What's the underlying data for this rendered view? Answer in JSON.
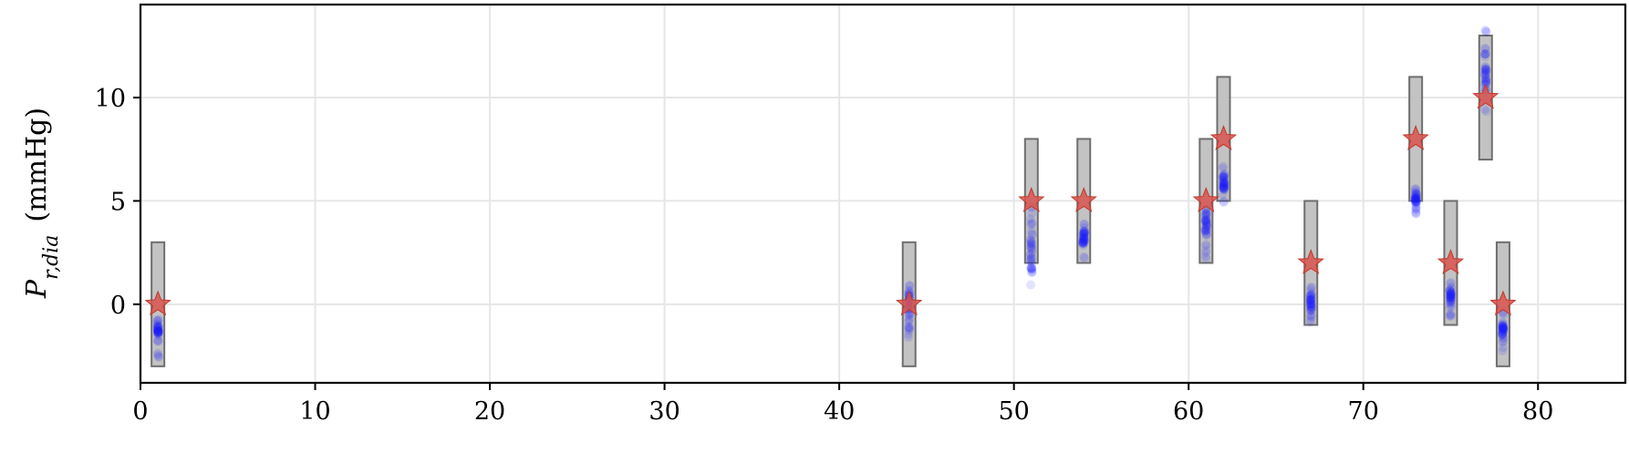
{
  "chart_data": {
    "type": "scatter",
    "title": "",
    "xlabel": "",
    "ylabel": "P_{r,dia} (mmHg)",
    "ylabel_parts": {
      "symbol": "P",
      "subscript": "r,dia",
      "unit": "(mmHg)"
    },
    "xlim": [
      0,
      85
    ],
    "ylim": [
      -3.8,
      14.5
    ],
    "xticks": [
      0,
      10,
      20,
      30,
      40,
      50,
      60,
      70,
      80
    ],
    "yticks": [
      0,
      5,
      10
    ],
    "grid": true,
    "legend": "none",
    "series": [
      {
        "marker": "star",
        "color": "#d9534f",
        "points": [
          {
            "x": 1,
            "y": 0
          },
          {
            "x": 44,
            "y": 0
          },
          {
            "x": 51,
            "y": 5
          },
          {
            "x": 54,
            "y": 5
          },
          {
            "x": 61,
            "y": 5
          },
          {
            "x": 62,
            "y": 8
          },
          {
            "x": 67,
            "y": 2
          },
          {
            "x": 73,
            "y": 8
          },
          {
            "x": 75,
            "y": 2
          },
          {
            "x": 77,
            "y": 10
          },
          {
            "x": 78,
            "y": 0
          }
        ]
      }
    ],
    "ranges": [
      {
        "x": 1,
        "low": -3,
        "high": 3
      },
      {
        "x": 44,
        "low": -3,
        "high": 3
      },
      {
        "x": 51,
        "low": 2,
        "high": 8
      },
      {
        "x": 54,
        "low": 2,
        "high": 8
      },
      {
        "x": 61,
        "low": 2,
        "high": 8
      },
      {
        "x": 62,
        "low": 5,
        "high": 11
      },
      {
        "x": 67,
        "low": -1,
        "high": 5
      },
      {
        "x": 73,
        "low": 5,
        "high": 11
      },
      {
        "x": 75,
        "low": -1,
        "high": 5
      },
      {
        "x": 77,
        "low": 7,
        "high": 13
      },
      {
        "x": 78,
        "low": -3,
        "high": 3
      }
    ],
    "samples": [
      {
        "x": 1,
        "low": -2.6,
        "high": -0.6,
        "center": -1.2
      },
      {
        "x": 44,
        "low": -1.6,
        "high": 1.0,
        "center": 0.2
      },
      {
        "x": 51,
        "low": 0.9,
        "high": 4.8,
        "center": 2.5
      },
      {
        "x": 54,
        "low": 2.2,
        "high": 4.0,
        "center": 3.2
      },
      {
        "x": 61,
        "low": 2.2,
        "high": 5.2,
        "center": 3.8
      },
      {
        "x": 62,
        "low": 4.6,
        "high": 7.0,
        "center": 5.8
      },
      {
        "x": 67,
        "low": -1.2,
        "high": 0.9,
        "center": 0.2
      },
      {
        "x": 73,
        "low": 4.3,
        "high": 5.6,
        "center": 5.1
      },
      {
        "x": 75,
        "low": -0.6,
        "high": 1.2,
        "center": 0.3
      },
      {
        "x": 77,
        "low": 9.2,
        "high": 13.6,
        "center": 11.2
      },
      {
        "x": 78,
        "low": -2.6,
        "high": -0.3,
        "center": -1.3
      }
    ],
    "colors": {
      "star": "#d9534f",
      "samples": "#1a1aff",
      "range_fill": "#bdbdbd",
      "range_edge": "#6e6e6e",
      "grid": "#e6e6e6"
    }
  }
}
